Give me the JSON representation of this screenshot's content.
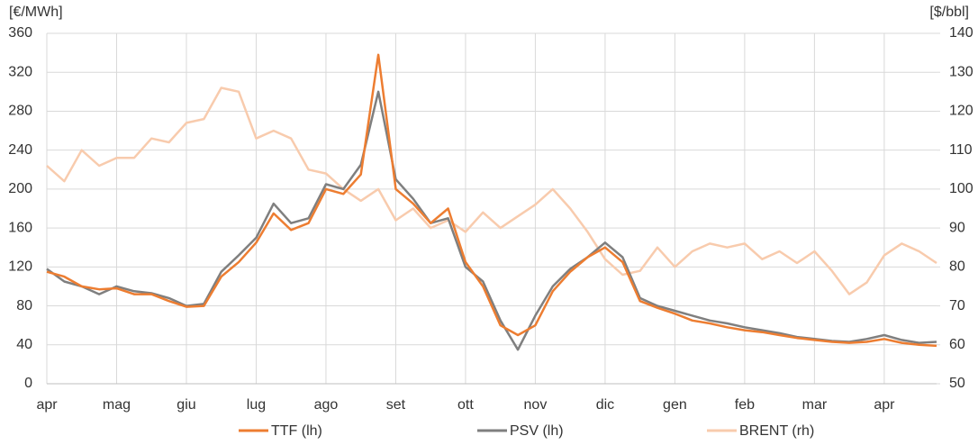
{
  "chart_data": {
    "type": "line",
    "y_label": "[€/MWh]",
    "y2_label": "[$/bbl]",
    "categories": [
      "apr",
      null,
      null,
      null,
      "mag",
      null,
      null,
      null,
      "giu",
      null,
      null,
      null,
      "lug",
      null,
      null,
      null,
      "ago",
      null,
      null,
      null,
      "set",
      null,
      null,
      null,
      "ott",
      null,
      null,
      null,
      "nov",
      null,
      null,
      null,
      "dic",
      null,
      null,
      null,
      "gen",
      null,
      null,
      null,
      "feb",
      null,
      null,
      null,
      "mar",
      null,
      null,
      null,
      "apr",
      null,
      null,
      null
    ],
    "series": [
      {
        "name": "TTF (lh)",
        "color": "#ed7d31",
        "values": [
          115,
          110,
          100,
          97,
          98,
          92,
          92,
          85,
          79,
          80,
          110,
          125,
          145,
          175,
          158,
          165,
          200,
          195,
          215,
          338,
          200,
          185,
          165,
          180,
          125,
          100,
          60,
          50,
          60,
          95,
          115,
          130,
          140,
          125,
          85,
          78,
          72,
          65,
          62,
          58,
          55,
          53,
          50,
          47,
          45,
          43,
          42,
          43,
          46,
          42,
          40,
          39
        ]
      },
      {
        "name": "PSV (lh)",
        "color": "#7f7f7f",
        "values": [
          118,
          105,
          100,
          92,
          100,
          95,
          93,
          88,
          80,
          82,
          115,
          132,
          150,
          185,
          165,
          170,
          205,
          200,
          225,
          300,
          210,
          190,
          165,
          170,
          120,
          105,
          65,
          35,
          70,
          100,
          118,
          130,
          145,
          130,
          88,
          80,
          75,
          70,
          65,
          62,
          58,
          55,
          52,
          48,
          46,
          44,
          43,
          46,
          50,
          45,
          42,
          43
        ]
      },
      {
        "name": "BRENT (rh)",
        "color": "#f8cbad",
        "axis": "y2",
        "values": [
          106,
          102,
          110,
          106,
          108,
          108,
          113,
          112,
          117,
          118,
          126,
          125,
          113,
          115,
          113,
          105,
          104,
          100,
          97,
          100,
          92,
          95,
          90,
          92,
          89,
          94,
          90,
          93,
          96,
          100,
          95,
          89,
          82,
          78,
          79,
          85,
          80,
          84,
          86,
          85,
          86,
          82,
          84,
          81,
          84,
          79,
          73,
          76,
          83,
          86,
          84,
          81
        ]
      }
    ],
    "ylim": [
      0,
      360
    ],
    "yticks": [
      0,
      40,
      80,
      120,
      160,
      200,
      240,
      280,
      320,
      360
    ],
    "y2lim": [
      50,
      140
    ],
    "y2ticks": [
      50,
      60,
      70,
      80,
      90,
      100,
      110,
      120,
      130,
      140
    ],
    "grid": true,
    "legend": "bottom"
  }
}
